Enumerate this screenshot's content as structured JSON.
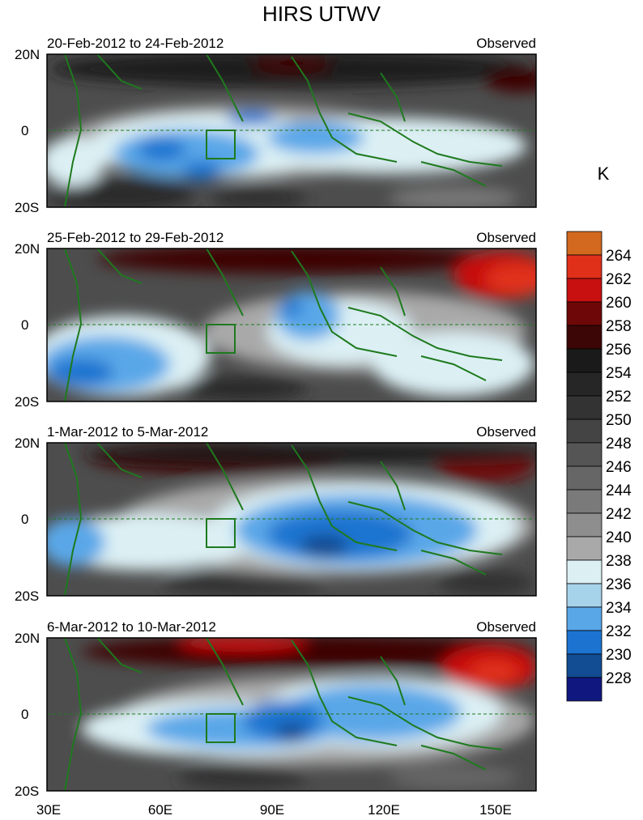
{
  "title": "HIRS UTWV",
  "unit": "K",
  "region": {
    "lon_range": [
      30,
      160
    ],
    "lat_range": [
      -20,
      20
    ],
    "lon_ticks": [
      "30E",
      "60E",
      "90E",
      "120E",
      "150E"
    ],
    "lat_ticks": [
      "20N",
      "0",
      "20S"
    ]
  },
  "panels": [
    {
      "date_range": "20-Feb-2012 to 24-Feb-2012",
      "label": "Observed"
    },
    {
      "date_range": "25-Feb-2012 to 29-Feb-2012",
      "label": "Observed"
    },
    {
      "date_range": "1-Mar-2012 to 5-Mar-2012",
      "label": "Observed"
    },
    {
      "date_range": "6-Mar-2012 to 10-Mar-2012",
      "label": "Observed"
    }
  ],
  "colorbar": {
    "levels": [
      {
        "value": "264",
        "color": "#d2691e"
      },
      {
        "value": "262",
        "color": "#e0301a"
      },
      {
        "value": "260",
        "color": "#c81010"
      },
      {
        "value": "258",
        "color": "#6e0808"
      },
      {
        "value": "256",
        "color": "#3c0606"
      },
      {
        "value": "254",
        "color": "#1a1a1a"
      },
      {
        "value": "252",
        "color": "#262626"
      },
      {
        "value": "250",
        "color": "#333333"
      },
      {
        "value": "248",
        "color": "#444444"
      },
      {
        "value": "246",
        "color": "#555555"
      },
      {
        "value": "244",
        "color": "#666666"
      },
      {
        "value": "242",
        "color": "#7a7a7a"
      },
      {
        "value": "240",
        "color": "#8e8e8e"
      },
      {
        "value": "238",
        "color": "#a9a9a9"
      },
      {
        "value": "236",
        "color": "#dcf0f4"
      },
      {
        "value": "234",
        "color": "#a6d3ea"
      },
      {
        "value": "232",
        "color": "#5aa7e8"
      },
      {
        "value": "230",
        "color": "#1c74d0"
      },
      {
        "value": "228",
        "color": "#124c92"
      },
      {
        "value": "",
        "color": "#101880"
      }
    ]
  },
  "coastline_color": "#1e7a1e",
  "box_region": {
    "lon": [
      73,
      80
    ],
    "lat": [
      -8,
      0
    ]
  }
}
